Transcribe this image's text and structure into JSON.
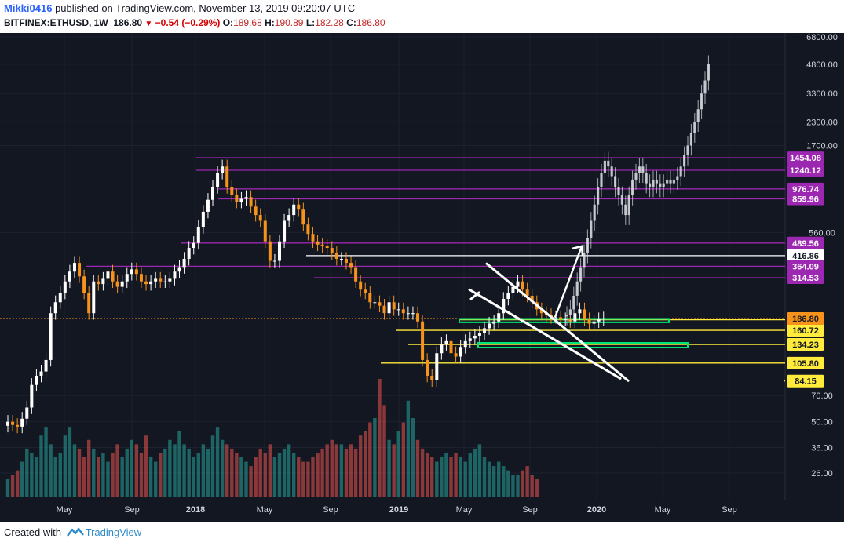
{
  "header": {
    "user": "Mikki0416",
    "published": "published on TradingView.com, November 13, 2019 09:20:07 UTC",
    "symbol": "BITFINEX:ETHUSD, 1W",
    "last": "186.80",
    "change": "−0.54 (−0.29%)",
    "o_label": "O:",
    "o": "189.68",
    "h_label": "H:",
    "h": "190.89",
    "l_label": "L:",
    "l": "182.28",
    "c_label": "C:",
    "c": "186.80"
  },
  "footer": {
    "created": "Created with",
    "brand": "TradingView"
  },
  "colors": {
    "background": "#131722",
    "bull_candle": "#ffffff",
    "bear_candle": "#f7931a",
    "level_purple": "#9c27b0",
    "level_yellow": "#ffeb3b",
    "box_green": "#00e676",
    "vol_up": "#26a69a",
    "vol_down": "#ef5350"
  },
  "chart_data": {
    "type": "candlestick",
    "scale": "log",
    "ylim": [
      17,
      6800
    ],
    "y_ticks": [
      "6800.00",
      "4800.00",
      "3300.00",
      "2300.00",
      "1700.00",
      "560.00",
      "70.00",
      "50.00",
      "36.00",
      "26.00"
    ],
    "x_ticks": [
      "May",
      "Sep",
      "2018",
      "May",
      "Sep",
      "2019",
      "May",
      "Sep",
      "2020",
      "May",
      "Sep"
    ],
    "last_price": {
      "value": "186.80",
      "color": "#f7931a"
    },
    "levels": [
      {
        "value": "1454.08",
        "color": "#9c27b0"
      },
      {
        "value": "1240.12",
        "color": "#9c27b0"
      },
      {
        "value": "976.74",
        "color": "#9c27b0"
      },
      {
        "value": "859.96",
        "color": "#9c27b0"
      },
      {
        "value": "489.56",
        "color": "#9c27b0"
      },
      {
        "value": "416.86",
        "color": "#ffffff"
      },
      {
        "value": "364.09",
        "color": "#9c27b0"
      },
      {
        "value": "314.53",
        "color": "#9c27b0"
      },
      {
        "value": "183.81",
        "color": "#ffeb3b"
      },
      {
        "value": "160.72",
        "color": "#ffeb3b"
      },
      {
        "value": "134.23",
        "color": "#ffeb3b"
      },
      {
        "value": "105.80",
        "color": "#ffeb3b"
      },
      {
        "value": "84.15",
        "color": "#ffeb3b"
      }
    ],
    "prices": [
      50,
      48,
      47,
      52,
      60,
      80,
      90,
      95,
      110,
      200,
      230,
      260,
      300,
      340,
      380,
      320,
      260,
      200,
      300,
      290,
      310,
      340,
      300,
      280,
      300,
      330,
      350,
      330,
      300,
      290,
      300,
      310,
      300,
      300,
      310,
      340,
      360,
      400,
      460,
      490,
      600,
      730,
      850,
      1000,
      1200,
      1300,
      1000,
      900,
      830,
      860,
      880,
      780,
      700,
      650,
      500,
      390,
      390,
      500,
      650,
      700,
      800,
      750,
      620,
      550,
      500,
      480,
      470,
      460,
      430,
      400,
      400,
      380,
      360,
      300,
      270,
      260,
      230,
      230,
      220,
      200,
      230,
      210,
      210,
      200,
      200,
      200,
      180,
      110,
      90,
      85,
      120,
      135,
      140,
      120,
      115,
      130,
      140,
      145,
      150,
      155,
      165,
      175,
      180,
      200,
      240,
      260,
      280,
      300,
      270,
      250,
      230,
      210,
      200,
      195,
      190,
      190,
      185,
      185,
      180,
      200,
      210,
      185,
      175,
      180,
      185,
      187
    ],
    "projection": [
      195,
      210,
      250,
      300,
      360,
      430,
      520,
      650,
      800,
      1000,
      1200,
      1400,
      1300,
      1150,
      1000,
      900,
      800,
      700,
      900,
      1100,
      1200,
      1300,
      1200,
      1050,
      1000,
      1100,
      1050,
      1000,
      1050,
      1100,
      1050,
      1100,
      1150,
      1300,
      1500,
      1700,
      2000,
      2300,
      2700,
      3300,
      3900,
      4800
    ],
    "volume": [
      4,
      5,
      6,
      8,
      11,
      10,
      9,
      14,
      16,
      12,
      9,
      10,
      14,
      16,
      12,
      11,
      9,
      13,
      11,
      9,
      10,
      8,
      10,
      12,
      9,
      11,
      13,
      12,
      10,
      14,
      9,
      8,
      10,
      11,
      13,
      12,
      15,
      12,
      11,
      9,
      10,
      12,
      11,
      14,
      16,
      13,
      12,
      11,
      10,
      9,
      8,
      7,
      9,
      11,
      10,
      12,
      9,
      10,
      11,
      12,
      10,
      9,
      8,
      8,
      9,
      10,
      11,
      12,
      13,
      12,
      12,
      11,
      12,
      11,
      14,
      15,
      17,
      18,
      27,
      21,
      13,
      12,
      15,
      17,
      22,
      18,
      13,
      11,
      10,
      9,
      8,
      9,
      10,
      9,
      10,
      9,
      8,
      10,
      11,
      12,
      9,
      8,
      7,
      8,
      7,
      6,
      5,
      5,
      6,
      7,
      5,
      4
    ]
  }
}
